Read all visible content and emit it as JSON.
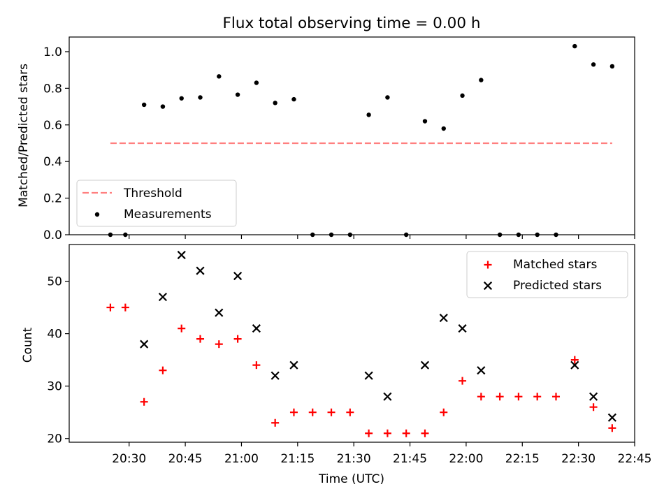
{
  "chart_data": [
    {
      "type": "scatter",
      "title": "Flux total observing time = 0.00 h",
      "xlabel": "",
      "ylabel": "Matched/Predicted stars",
      "ylim": [
        0.0,
        1.08
      ],
      "yticks": [
        0.0,
        0.2,
        0.4,
        0.6,
        0.8,
        1.0
      ],
      "ytick_labels": [
        "0.0",
        "0.2",
        "0.4",
        "0.6",
        "0.8",
        "1.0"
      ],
      "legend_position": "lower-left",
      "threshold": {
        "name": "Threshold",
        "value": 0.5,
        "x_start": "20:25",
        "x_end": "22:39",
        "color": "#ff7f7f"
      },
      "measurements": {
        "name": "Measurements",
        "color": "#000000",
        "x": [
          "20:25",
          "20:29",
          "20:34",
          "20:39",
          "20:44",
          "20:49",
          "20:54",
          "20:59",
          "21:04",
          "21:09",
          "21:14",
          "21:19",
          "21:24",
          "21:29",
          "21:34",
          "21:39",
          "21:44",
          "21:49",
          "21:54",
          "21:59",
          "22:04",
          "22:09",
          "22:14",
          "22:19",
          "22:24",
          "22:29",
          "22:34",
          "22:39"
        ],
        "y": [
          0.0,
          0.0,
          0.71,
          0.7,
          0.745,
          0.75,
          0.865,
          0.765,
          0.83,
          0.72,
          0.74,
          0.0,
          0.0,
          0.0,
          0.655,
          0.75,
          0.0,
          0.62,
          0.58,
          0.76,
          0.845,
          0.0,
          0.0,
          0.0,
          0.0,
          1.03,
          0.93,
          0.92
        ]
      }
    },
    {
      "type": "scatter",
      "title": "",
      "xlabel": "Time (UTC)",
      "ylabel": "Count",
      "ylim": [
        19.3,
        57.0
      ],
      "yticks": [
        20,
        30,
        40,
        50
      ],
      "ytick_labels": [
        "20",
        "30",
        "40",
        "50"
      ],
      "xlim": [
        "20:14",
        "22:45"
      ],
      "xtick_labels": [
        "20:30",
        "20:45",
        "21:00",
        "21:15",
        "21:30",
        "21:45",
        "22:00",
        "22:15",
        "22:30",
        "22:45"
      ],
      "legend_position": "upper-right",
      "series": [
        {
          "name": "Matched stars",
          "color": "#ff0000",
          "marker": "plus",
          "x": [
            "20:25",
            "20:29",
            "20:34",
            "20:39",
            "20:44",
            "20:49",
            "20:54",
            "20:59",
            "21:04",
            "21:09",
            "21:14",
            "21:19",
            "21:24",
            "21:29",
            "21:34",
            "21:39",
            "21:44",
            "21:49",
            "21:54",
            "21:59",
            "22:04",
            "22:09",
            "22:14",
            "22:19",
            "22:24",
            "22:29",
            "22:34",
            "22:39"
          ],
          "values": [
            45,
            45,
            27,
            33,
            41,
            39,
            38,
            39,
            34,
            23,
            25,
            25,
            25,
            25,
            21,
            21,
            21,
            21,
            25,
            31,
            28,
            28,
            28,
            28,
            28,
            35,
            26,
            22
          ]
        },
        {
          "name": "Predicted stars",
          "color": "#000000",
          "marker": "x",
          "x": [
            "20:34",
            "20:39",
            "20:44",
            "20:49",
            "20:54",
            "20:59",
            "21:04",
            "21:09",
            "21:14",
            "21:34",
            "21:39",
            "21:49",
            "21:54",
            "21:59",
            "22:04",
            "22:29",
            "22:34",
            "22:39"
          ],
          "values": [
            38,
            47,
            55,
            52,
            44,
            51,
            41,
            32,
            34,
            32,
            28,
            34,
            43,
            41,
            33,
            34,
            28,
            24
          ]
        }
      ]
    }
  ]
}
